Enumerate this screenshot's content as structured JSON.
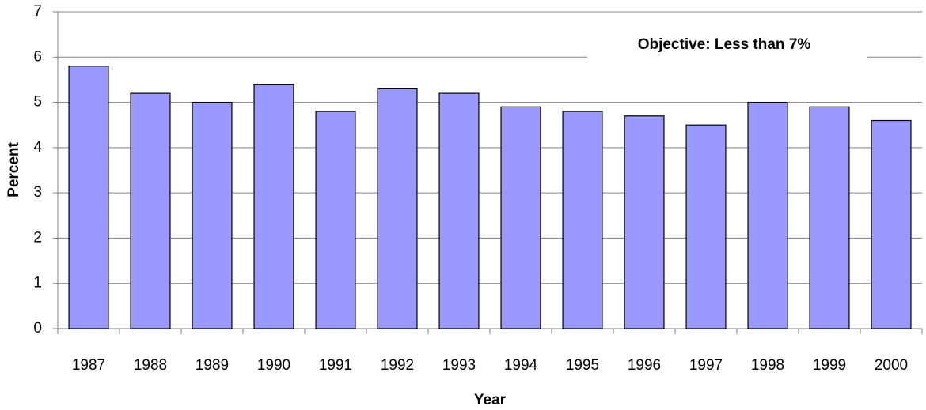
{
  "chart_data": {
    "type": "bar",
    "annotation": "Objective: Less than 7%",
    "x_label": "Year",
    "y_label": "Percent",
    "categories": [
      "1987",
      "1988",
      "1989",
      "1990",
      "1991",
      "1992",
      "1993",
      "1994",
      "1995",
      "1996",
      "1997",
      "1998",
      "1999",
      "2000"
    ],
    "values": [
      5.8,
      5.2,
      5.0,
      5.4,
      4.8,
      5.3,
      5.2,
      4.9,
      4.8,
      4.7,
      4.5,
      5.0,
      4.9,
      4.6
    ],
    "color": "#9999ff",
    "ylim": [
      0,
      7
    ],
    "yticks": [
      0,
      1,
      2,
      3,
      4,
      5,
      6,
      7
    ],
    "grid": true
  }
}
